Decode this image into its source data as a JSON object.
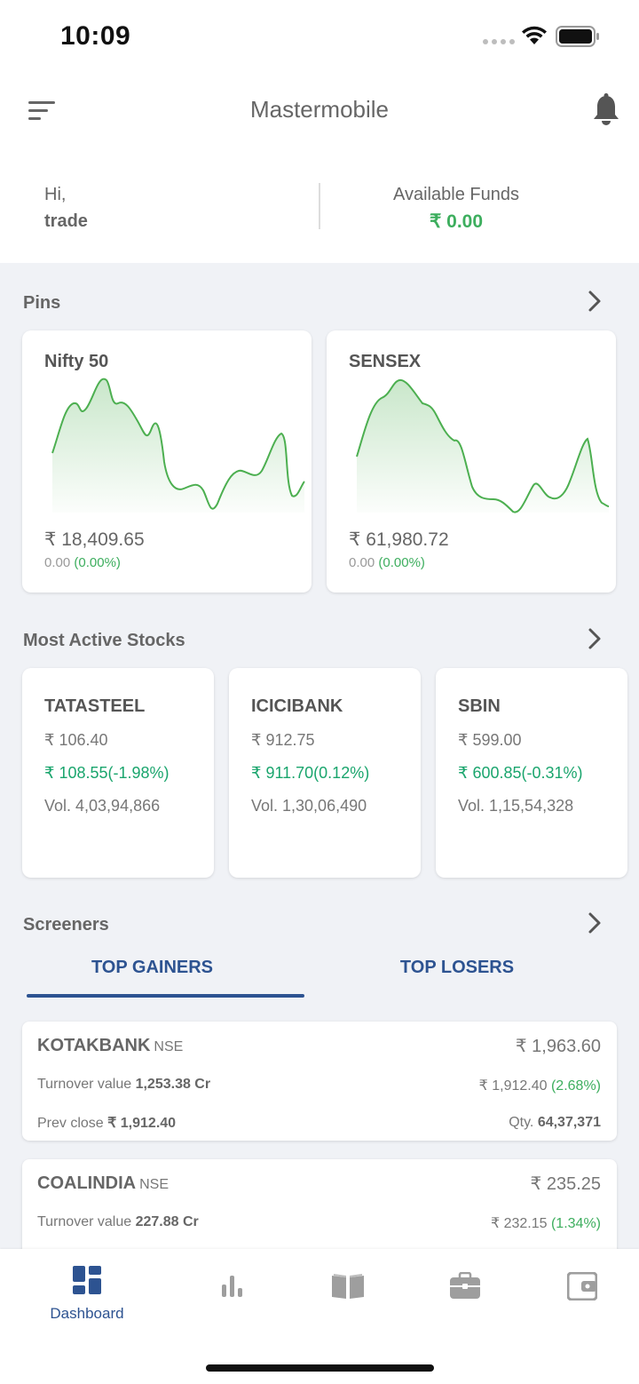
{
  "status_bar": {
    "time": "10:09"
  },
  "header": {
    "title": "Mastermobile"
  },
  "greeting": {
    "hi": "Hi,",
    "user": "trade",
    "funds_label": "Available Funds",
    "funds_value": "₹ 0.00"
  },
  "pins": {
    "title": "Pins",
    "cards": [
      {
        "name": "Nifty 50",
        "price": "₹ 18,409.65",
        "change": "0.00",
        "change_pct": "(0.00%)"
      },
      {
        "name": "SENSEX",
        "price": "₹ 61,980.72",
        "change": "0.00",
        "change_pct": "(0.00%)"
      }
    ]
  },
  "most_active": {
    "title": "Most Active Stocks",
    "stocks": [
      {
        "name": "TATASTEEL",
        "price": "₹ 106.40",
        "change": "₹ 108.55(-1.98%)",
        "volume": "Vol. 4,03,94,866"
      },
      {
        "name": "ICICIBANK",
        "price": "₹ 912.75",
        "change": "₹ 911.70(0.12%)",
        "volume": "Vol. 1,30,06,490"
      },
      {
        "name": "SBIN",
        "price": "₹ 599.00",
        "change": "₹ 600.85(-0.31%)",
        "volume": "Vol. 1,15,54,328"
      }
    ]
  },
  "screeners": {
    "title": "Screeners",
    "tabs": [
      "TOP GAINERS",
      "TOP LOSERS"
    ],
    "active_tab": "TOP GAINERS",
    "rows": [
      {
        "name": "KOTAKBANK",
        "exchange": "NSE",
        "price": "₹ 1,963.60",
        "turnover_label": "Turnover value",
        "turnover": "1,253.38 Cr",
        "prev_price": "₹ 1,912.40",
        "change_pct": "(2.68%)",
        "prev_close_label": "Prev close",
        "prev_close": "₹ 1,912.40",
        "qty_label": "Qty.",
        "qty": "64,37,371"
      },
      {
        "name": "COALINDIA",
        "exchange": "NSE",
        "price": "₹ 235.25",
        "turnover_label": "Turnover value",
        "turnover": "227.88 Cr",
        "prev_price": "₹ 232.15",
        "change_pct": "(1.34%)"
      }
    ]
  },
  "bottom_nav": {
    "items": [
      {
        "label": "Dashboard",
        "icon": "dashboard-icon",
        "active": true
      },
      {
        "label": "",
        "icon": "chart-icon"
      },
      {
        "label": "",
        "icon": "book-icon"
      },
      {
        "label": "",
        "icon": "briefcase-icon"
      },
      {
        "label": "",
        "icon": "wallet-icon"
      }
    ]
  },
  "colors": {
    "accent": "#2d5391",
    "positive": "#3dae5e",
    "background": "#f0f2f6"
  }
}
